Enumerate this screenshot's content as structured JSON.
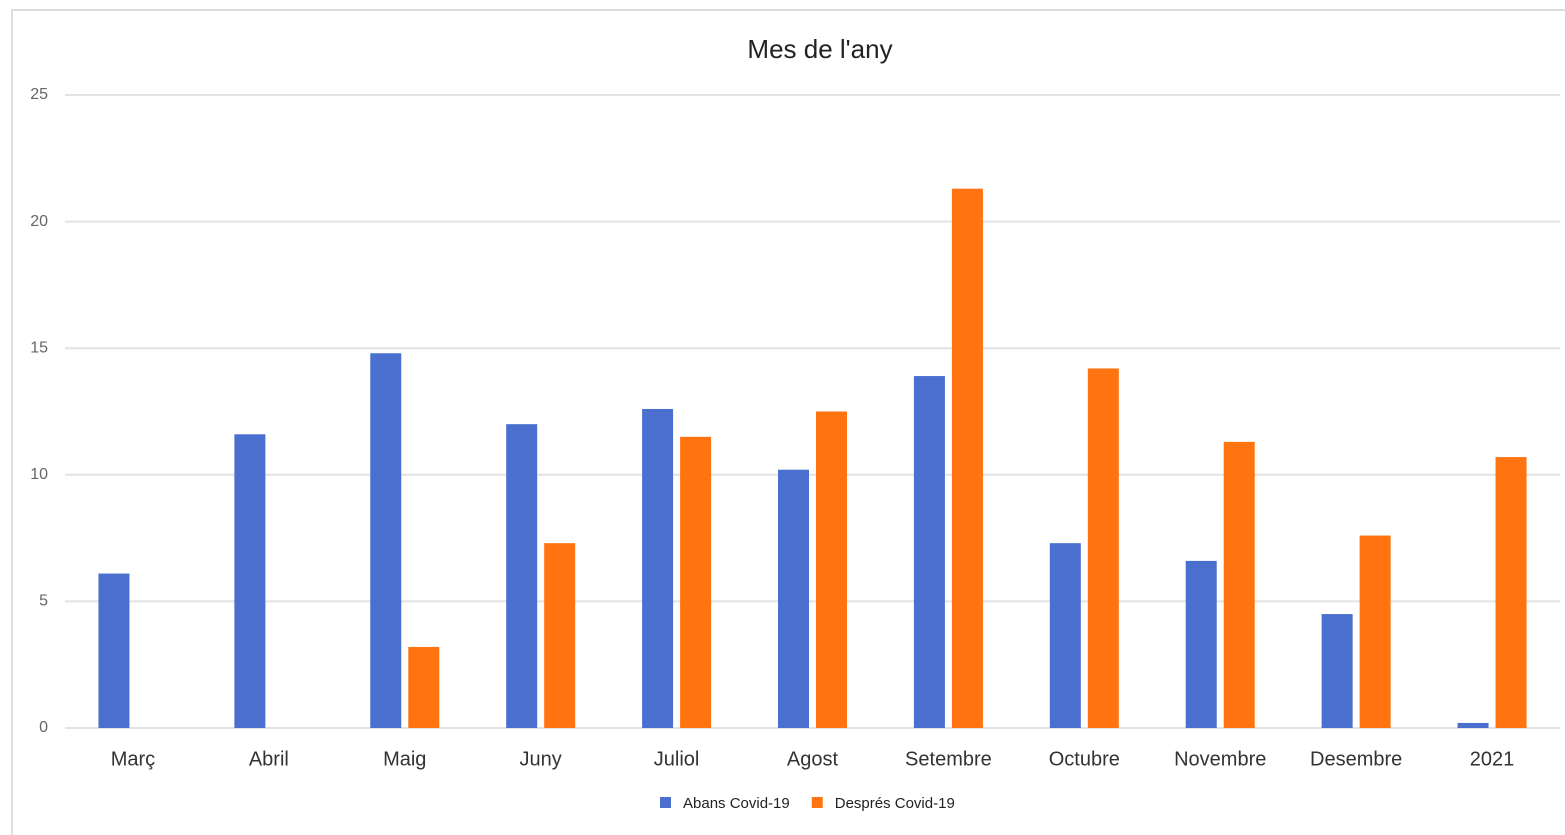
{
  "chart_data": {
    "type": "bar",
    "title": "Mes de l'any",
    "categories": [
      "Març",
      "Abril",
      "Maig",
      "Juny",
      "Juliol",
      "Agost",
      "Setembre",
      "Octubre",
      "Novembre",
      "Desembre",
      "2021"
    ],
    "series": [
      {
        "name": "Abans Covid-19",
        "color": "#4a6fcf",
        "values": [
          6.1,
          11.6,
          14.8,
          12.0,
          12.6,
          10.2,
          13.9,
          7.3,
          6.6,
          4.5,
          0.2
        ]
      },
      {
        "name": "Després Covid-19",
        "color": "#ff7410",
        "values": [
          null,
          null,
          3.2,
          7.3,
          11.5,
          12.5,
          21.3,
          14.2,
          11.3,
          7.6,
          10.7
        ]
      }
    ],
    "ylim": [
      0,
      25
    ],
    "yticks": [
      0,
      5,
      10,
      15,
      20,
      25
    ],
    "grid": true,
    "legend": "bottom"
  }
}
